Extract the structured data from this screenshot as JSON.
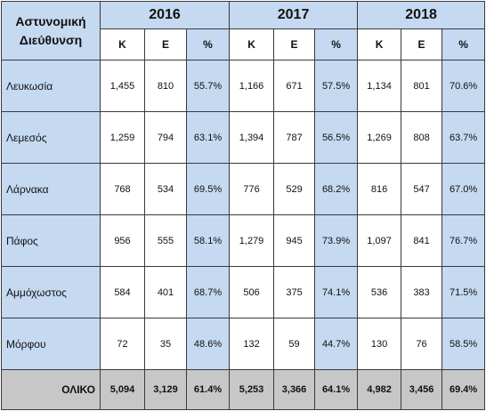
{
  "header": {
    "corner_label": "Αστυνομική Διεύθυνση",
    "years": [
      "2016",
      "2017",
      "2018"
    ],
    "sub_columns": [
      "Κ",
      "Ε",
      "%"
    ]
  },
  "rows": [
    {
      "label": "Λευκωσία",
      "values": [
        "1,455",
        "810",
        "55.7%",
        "1,166",
        "671",
        "57.5%",
        "1,134",
        "801",
        "70.6%"
      ]
    },
    {
      "label": "Λεμεσός",
      "values": [
        "1,259",
        "794",
        "63.1%",
        "1,394",
        "787",
        "56.5%",
        "1,269",
        "808",
        "63.7%"
      ]
    },
    {
      "label": "Λάρνακα",
      "values": [
        "768",
        "534",
        "69.5%",
        "776",
        "529",
        "68.2%",
        "816",
        "547",
        "67.0%"
      ]
    },
    {
      "label": "Πάφος",
      "values": [
        "956",
        "555",
        "58.1%",
        "1,279",
        "945",
        "73.9%",
        "1,097",
        "841",
        "76.7%"
      ]
    },
    {
      "label": "Αμμόχωστος",
      "values": [
        "584",
        "401",
        "68.7%",
        "506",
        "375",
        "74.1%",
        "536",
        "383",
        "71.5%"
      ]
    },
    {
      "label": "Μόρφου",
      "values": [
        "72",
        "35",
        "48.6%",
        "132",
        "59",
        "44.7%",
        "130",
        "76",
        "58.5%"
      ]
    }
  ],
  "total": {
    "label": "ΟΛΙΚΟ",
    "values": [
      "5,094",
      "3,129",
      "61.4%",
      "5,253",
      "3,366",
      "64.1%",
      "4,982",
      "3,456",
      "69.4%"
    ]
  }
}
